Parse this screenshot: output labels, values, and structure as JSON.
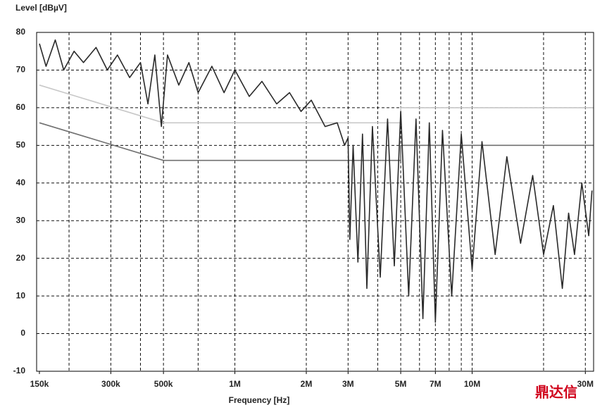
{
  "chart_data": {
    "type": "line",
    "log_x": true,
    "grid": true,
    "y_label": "Level [dBµV]",
    "x_label": "Frequency [Hz]",
    "watermark": "鼎达信",
    "xlim": [
      146000,
      32500000
    ],
    "ylim": [
      -10,
      80
    ],
    "yticks": [
      -10,
      0,
      10,
      20,
      30,
      40,
      50,
      60,
      70,
      80
    ],
    "xticks": [
      {
        "value": 150000,
        "label": "150k"
      },
      {
        "value": 300000,
        "label": "300k"
      },
      {
        "value": 500000,
        "label": "500k"
      },
      {
        "value": 1000000,
        "label": "1M"
      },
      {
        "value": 2000000,
        "label": "2M"
      },
      {
        "value": 3000000,
        "label": "3M"
      },
      {
        "value": 5000000,
        "label": "5M"
      },
      {
        "value": 7000000,
        "label": "7M"
      },
      {
        "value": 10000000,
        "label": "10M"
      },
      {
        "value": 30000000,
        "label": "30M"
      }
    ],
    "xgrid": [
      200000,
      300000,
      400000,
      500000,
      700000,
      1000000,
      2000000,
      3000000,
      4000000,
      5000000,
      6000000,
      7000000,
      8000000,
      9000000,
      10000000,
      20000000,
      30000000
    ],
    "series": [
      {
        "color": "#c8c8c8",
        "x": [
          150000,
          500000,
          5000000,
          5000000,
          32500000
        ],
        "values": [
          66,
          56,
          56,
          60,
          60
        ]
      },
      {
        "color": "#707070",
        "x": [
          150000,
          500000,
          5000000,
          5000000,
          32500000
        ],
        "values": [
          56,
          46,
          46,
          50,
          50
        ]
      },
      {
        "color": "#2a2a2a",
        "x": [
          150000,
          160000,
          175000,
          190000,
          210000,
          230000,
          260000,
          290000,
          320000,
          360000,
          400000,
          430000,
          460000,
          490000,
          520000,
          580000,
          640000,
          700000,
          800000,
          900000,
          1000000,
          1150000,
          1300000,
          1500000,
          1700000,
          1900000,
          2100000,
          2400000,
          2700000,
          2900000,
          3000000,
          3050000,
          3150000,
          3300000,
          3450000,
          3600000,
          3800000,
          4100000,
          4400000,
          4700000,
          5000000,
          5400000,
          5800000,
          6200000,
          6600000,
          7000000,
          7500000,
          8200000,
          9000000,
          10000000,
          11000000,
          12500000,
          14000000,
          16000000,
          18000000,
          20000000,
          22000000,
          24000000,
          25500000,
          27000000,
          29000000,
          31000000,
          32000000
        ],
        "values": [
          77,
          71,
          78,
          70,
          75,
          72,
          76,
          70,
          74,
          68,
          72,
          61,
          74,
          55,
          74,
          66,
          72,
          64,
          71,
          64,
          70,
          63,
          67,
          61,
          64,
          59,
          62,
          55,
          56,
          50,
          52,
          25,
          50,
          19,
          53,
          12,
          55,
          15,
          57,
          18,
          59,
          10,
          57,
          4,
          56,
          3,
          54,
          10,
          53,
          17,
          51,
          21,
          47,
          24,
          42,
          21,
          34,
          12,
          32,
          21,
          40,
          26,
          38
        ]
      }
    ]
  }
}
